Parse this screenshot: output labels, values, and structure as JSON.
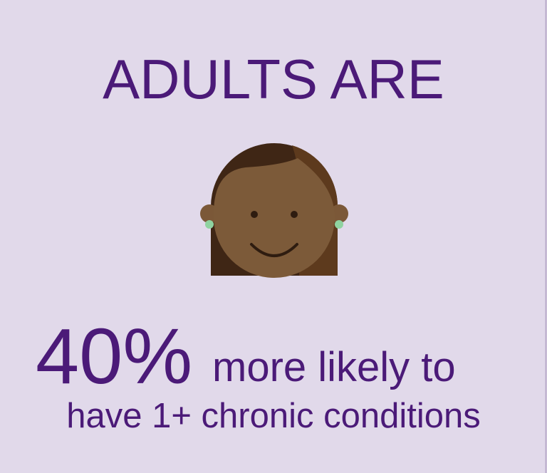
{
  "heading": "ADULTS ARE",
  "stat": "40%",
  "line1": "more likely to",
  "line2": "have 1+ chronic conditions"
}
